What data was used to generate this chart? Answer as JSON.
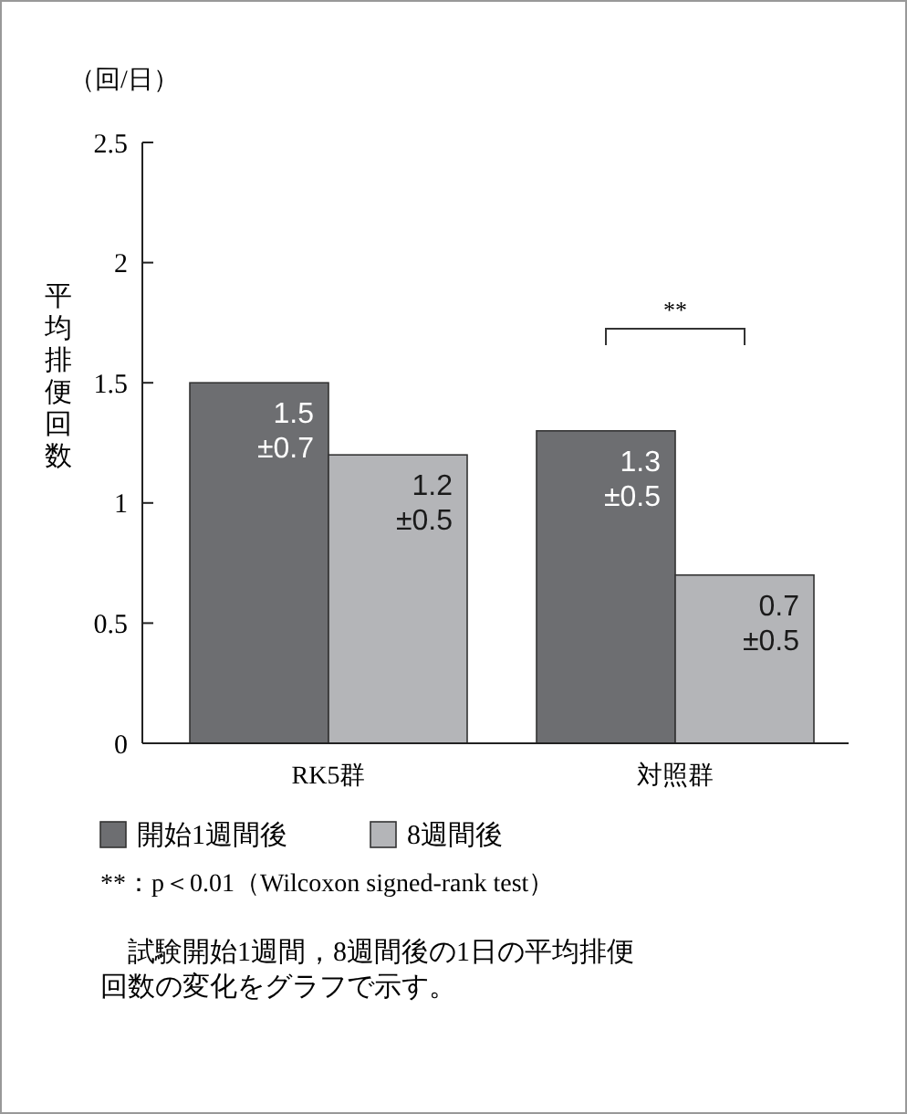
{
  "chart_data": {
    "type": "bar",
    "ylabel": "平均排便回数",
    "categories": [
      "RK5群",
      "対照群"
    ],
    "series": [
      {
        "name": "開始1週間後",
        "color": "#6d6e71",
        "values": [
          1.5,
          1.3
        ],
        "value_labels": [
          "1.5\n±0.7",
          "1.3\n±0.5"
        ]
      },
      {
        "name": "8週間後",
        "color": "#b4b5b8",
        "values": [
          1.2,
          0.7
        ],
        "value_labels": [
          "1.2\n±0.5",
          "0.7\n±0.5"
        ]
      }
    ],
    "ylim": [
      0,
      2.5
    ],
    "yticks": [
      0,
      0.5,
      1,
      1.5,
      2,
      2.5
    ],
    "grid": false,
    "legend": "bottom",
    "annotations": [
      "（回/日）",
      "**",
      "**：p＜0.01（Wilcoxon signed-rank test）",
      "　試験開始1週間，8週間後の1日の平均排便回数の変化をグラフで示す。"
    ]
  }
}
